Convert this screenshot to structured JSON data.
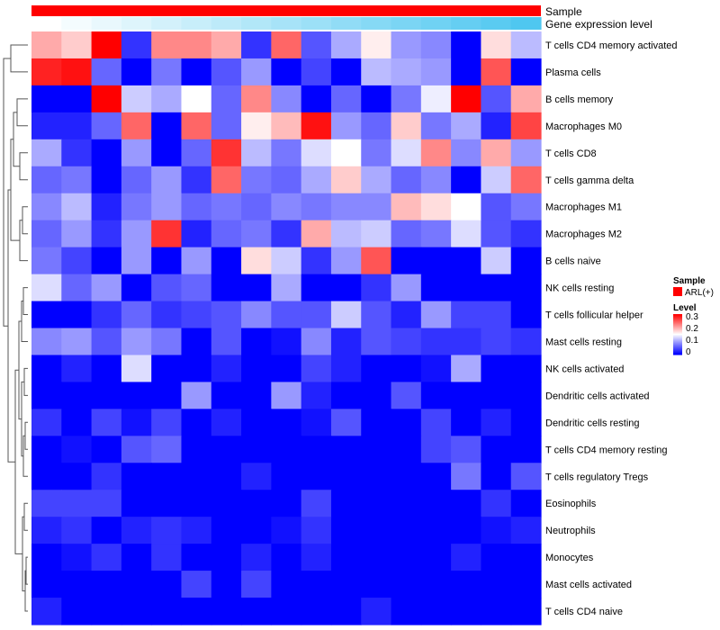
{
  "chart_data": {
    "type": "heatmap",
    "title": "",
    "annotations": {
      "sample_label": "Sample",
      "expression_label": "Gene expression level",
      "sample_color": "#ff0000",
      "expression_gradient": [
        "#ffffff",
        "#4fc7f0"
      ]
    },
    "rows": [
      "T cells CD4 memory activated",
      "Plasma cells",
      "B cells memory",
      "Macrophages M0",
      "T cells CD8",
      "T cells gamma delta",
      "Macrophages M1",
      "Macrophages M2",
      "B cells naive",
      "NK cells resting",
      "T cells follicular helper",
      "Mast cells resting",
      "NK cells activated",
      "Dendritic cells activated",
      "Dendritic cells resting",
      "T cells CD4 memory resting",
      "T cells regulatory  Tregs",
      "Eosinophils",
      "Neutrophils",
      "Monocytes",
      "Mast cells activated",
      "T cells CD4 naive"
    ],
    "n_columns": 17,
    "values": [
      [
        0.2,
        0.18,
        0.3,
        0.03,
        0.22,
        0.22,
        0.2,
        0.03,
        0.24,
        0.05,
        0.1,
        0.16,
        0.09,
        0.08,
        0.0,
        0.17,
        0.11
      ],
      [
        0.28,
        0.29,
        0.06,
        0.0,
        0.07,
        0.0,
        0.05,
        0.09,
        0.0,
        0.04,
        0.0,
        0.11,
        0.1,
        0.09,
        0.0,
        0.25,
        0.0
      ],
      [
        0.0,
        0.0,
        0.3,
        0.12,
        0.1,
        0.15,
        0.06,
        0.22,
        0.08,
        0.0,
        0.06,
        0.0,
        0.07,
        0.14,
        0.3,
        0.05,
        0.2
      ],
      [
        0.02,
        0.02,
        0.06,
        0.24,
        0.0,
        0.24,
        0.06,
        0.16,
        0.19,
        0.29,
        0.09,
        0.06,
        0.18,
        0.07,
        0.1,
        0.02,
        0.26
      ],
      [
        0.1,
        0.03,
        0.0,
        0.09,
        0.0,
        0.06,
        0.27,
        0.11,
        0.07,
        0.13,
        0.15,
        0.07,
        0.13,
        0.22,
        0.08,
        0.2,
        0.09
      ],
      [
        0.06,
        0.07,
        0.0,
        0.06,
        0.09,
        0.03,
        0.24,
        0.07,
        0.06,
        0.1,
        0.18,
        0.1,
        0.06,
        0.08,
        0.0,
        0.12,
        0.24
      ],
      [
        0.08,
        0.11,
        0.02,
        0.07,
        0.09,
        0.06,
        0.07,
        0.06,
        0.08,
        0.07,
        0.08,
        0.08,
        0.19,
        0.17,
        0.15,
        0.05,
        0.07
      ],
      [
        0.06,
        0.09,
        0.03,
        0.09,
        0.27,
        0.02,
        0.06,
        0.07,
        0.03,
        0.2,
        0.11,
        0.12,
        0.06,
        0.07,
        0.13,
        0.05,
        0.03
      ],
      [
        0.07,
        0.04,
        0.0,
        0.09,
        0.0,
        0.09,
        0.0,
        0.17,
        0.12,
        0.03,
        0.09,
        0.25,
        0.0,
        0.0,
        0.0,
        0.12,
        0.0
      ],
      [
        0.13,
        0.06,
        0.09,
        0.0,
        0.05,
        0.06,
        0.0,
        0.0,
        0.1,
        0.0,
        0.0,
        0.03,
        0.09,
        0.0,
        0.0,
        0.0,
        0.0
      ],
      [
        0.0,
        0.0,
        0.03,
        0.06,
        0.03,
        0.04,
        0.05,
        0.08,
        0.05,
        0.05,
        0.12,
        0.05,
        0.02,
        0.09,
        0.04,
        0.04,
        0.0
      ],
      [
        0.08,
        0.09,
        0.05,
        0.09,
        0.07,
        0.0,
        0.05,
        0.0,
        0.01,
        0.08,
        0.02,
        0.05,
        0.04,
        0.03,
        0.03,
        0.04,
        0.03
      ],
      [
        0.0,
        0.02,
        0.0,
        0.13,
        0.0,
        0.0,
        0.02,
        0.0,
        0.0,
        0.04,
        0.02,
        0.0,
        0.0,
        0.01,
        0.1,
        0.0,
        0.0
      ],
      [
        0.0,
        0.0,
        0.0,
        0.0,
        0.0,
        0.09,
        0.0,
        0.0,
        0.09,
        0.02,
        0.0,
        0.0,
        0.05,
        0.0,
        0.0,
        0.0,
        0.0
      ],
      [
        0.03,
        0.0,
        0.04,
        0.01,
        0.04,
        0.0,
        0.02,
        0.0,
        0.0,
        0.01,
        0.05,
        0.0,
        0.0,
        0.04,
        0.0,
        0.02,
        0.0
      ],
      [
        0.0,
        0.01,
        0.0,
        0.05,
        0.06,
        0.0,
        0.0,
        0.0,
        0.0,
        0.0,
        0.0,
        0.0,
        0.0,
        0.04,
        0.05,
        0.0,
        0.0
      ],
      [
        0.0,
        0.0,
        0.03,
        0.0,
        0.0,
        0.0,
        0.0,
        0.02,
        0.0,
        0.0,
        0.0,
        0.0,
        0.0,
        0.0,
        0.07,
        0.0,
        0.05
      ],
      [
        0.04,
        0.04,
        0.04,
        0.0,
        0.0,
        0.0,
        0.0,
        0.0,
        0.0,
        0.04,
        0.0,
        0.0,
        0.0,
        0.0,
        0.0,
        0.03,
        0.0
      ],
      [
        0.02,
        0.03,
        0.0,
        0.02,
        0.03,
        0.02,
        0.0,
        0.0,
        0.01,
        0.03,
        0.0,
        0.0,
        0.0,
        0.0,
        0.0,
        0.01,
        0.02
      ],
      [
        0.0,
        0.01,
        0.03,
        0.0,
        0.03,
        0.0,
        0.0,
        0.02,
        0.0,
        0.02,
        0.0,
        0.0,
        0.0,
        0.0,
        0.02,
        0.0,
        0.0
      ],
      [
        0.0,
        0.0,
        0.0,
        0.0,
        0.0,
        0.04,
        0.0,
        0.04,
        0.0,
        0.0,
        0.0,
        0.0,
        0.0,
        0.0,
        0.0,
        0.0,
        0.0
      ],
      [
        0.02,
        0.0,
        0.0,
        0.0,
        0.0,
        0.0,
        0.0,
        0.0,
        0.0,
        0.0,
        0.0,
        0.02,
        0.0,
        0.0,
        0.0,
        0.0,
        0.0
      ]
    ],
    "color_scale": {
      "min": 0,
      "mid": 0.15,
      "max": 0.3,
      "low_color": "#0000ff",
      "mid_color": "#ffffff",
      "high_color": "#ff0000"
    },
    "legend": {
      "sample_title": "Sample",
      "sample_entry": "ARL(+)",
      "level_title": "Level",
      "level_ticks": [
        {
          "value": 0.3,
          "label": "0.3"
        },
        {
          "value": 0.2,
          "label": "0.2"
        },
        {
          "value": 0.1,
          "label": "0.1"
        },
        {
          "value": 0,
          "label": "0"
        }
      ],
      "placement": "right"
    },
    "dendrogram": "row",
    "legend_labels": {
      "sample_title": "Sample",
      "sample_entry": "ARL(+)",
      "level_title": "Level",
      "tick_0_3": "0.3",
      "tick_0_2": "0.2",
      "tick_0_1": "0.1",
      "tick_0": "0"
    }
  }
}
